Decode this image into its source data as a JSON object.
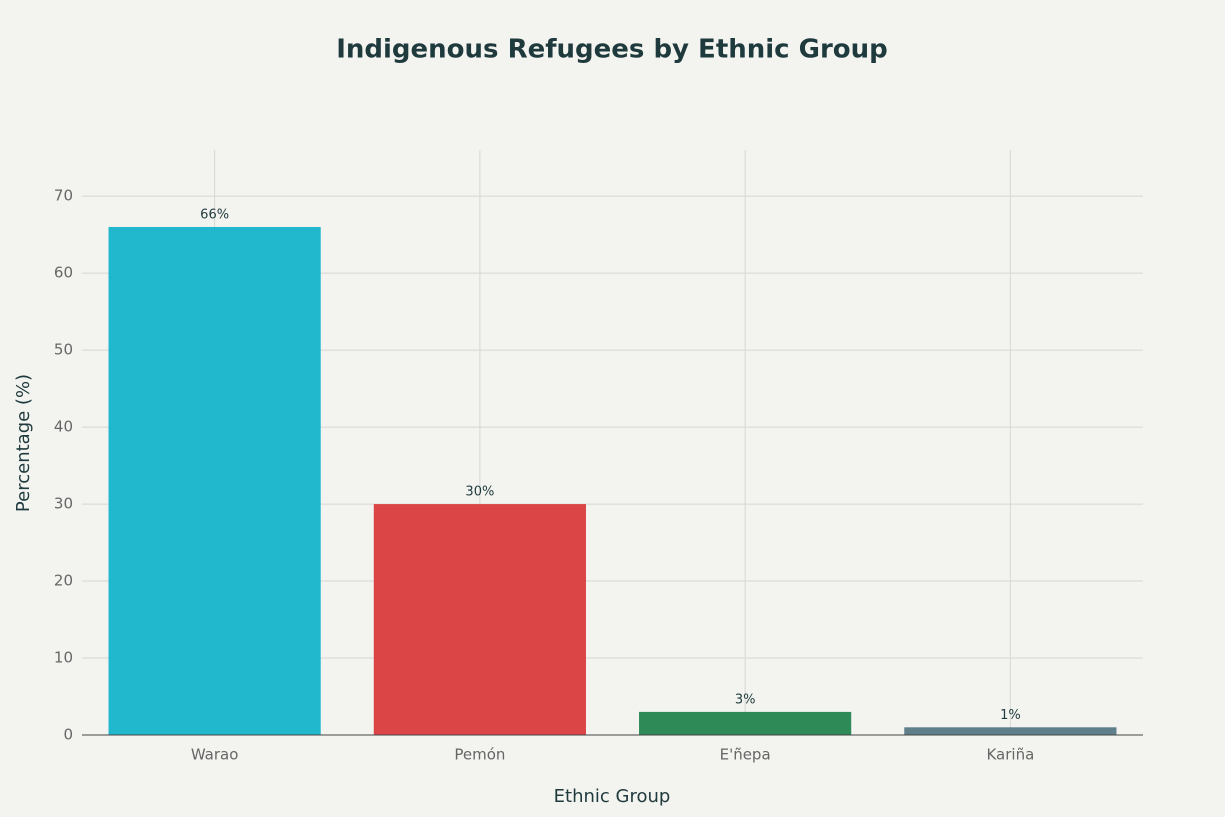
{
  "chart_data": {
    "type": "bar",
    "title": "Indigenous Refugees by Ethnic Group",
    "x_label": "Ethnic Group",
    "y_label": "Percentage (%)",
    "categories": [
      "Warao",
      "Pemón",
      "E'ñepa",
      "Kariña"
    ],
    "values": [
      66,
      30,
      3,
      1
    ],
    "value_labels": [
      "66%",
      "30%",
      "3%",
      "1%"
    ],
    "colors": [
      "#21b8cd",
      "#db4546",
      "#2e8b57",
      "#5f7f8a"
    ],
    "ylim": [
      0,
      76
    ],
    "yticks": [
      0,
      10,
      20,
      30,
      40,
      50,
      60,
      70
    ],
    "grid": true
  }
}
